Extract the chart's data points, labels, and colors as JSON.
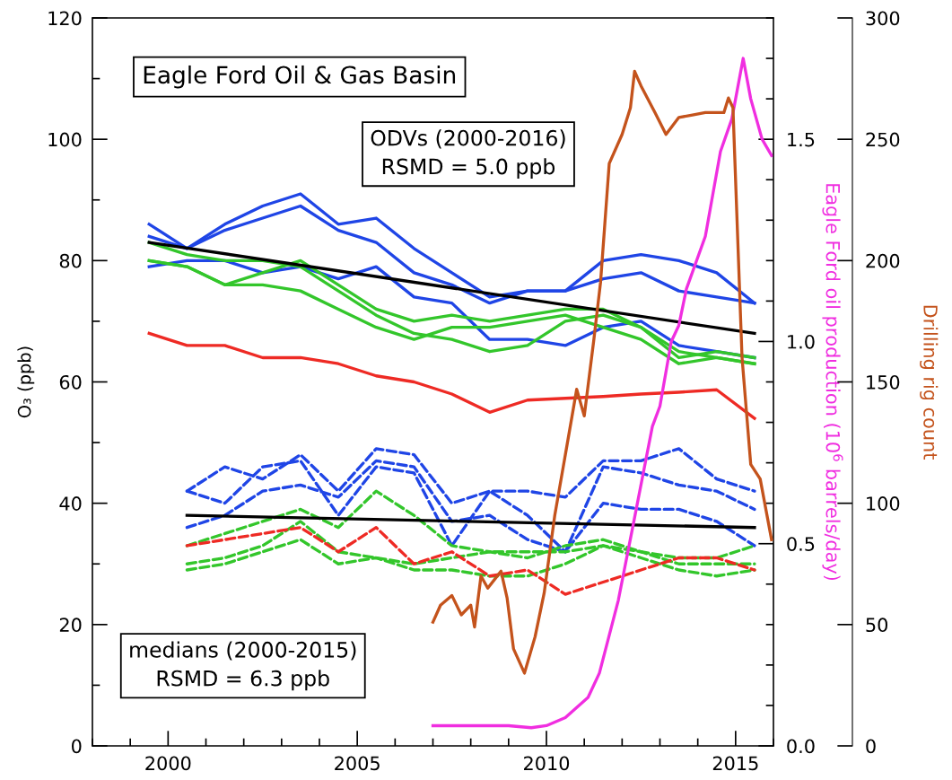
{
  "chart_data": {
    "type": "line",
    "ylabel": "O₃ (ppb)",
    "y2label": "Eagle Ford oil production (10$^{6}$ barrels/day)",
    "y3label": "Drilling rig count",
    "annotations": [
      "Eagle Ford Oil & Gas Basin",
      "ODVs (2000-2016)\nRSMD = 5.0 ppb",
      "medians (2000-2015)\nRSMD = 6.3 ppb"
    ],
    "xlim": [
      1998,
      2016
    ],
    "xticks": [
      {
        "value": 1998,
        "label": null
      },
      {
        "value": 1999,
        "label": null
      },
      2000,
      {
        "value": 2001,
        "label": null
      },
      {
        "value": 2002,
        "label": null
      },
      {
        "value": 2003,
        "label": null
      },
      {
        "value": 2004,
        "label": null
      },
      2005,
      {
        "value": 2006,
        "label": null
      },
      {
        "value": 2007,
        "label": null
      },
      {
        "value": 2008,
        "label": null
      },
      {
        "value": 2009,
        "label": null
      },
      2010,
      {
        "value": 2011,
        "label": null
      },
      {
        "value": 2012,
        "label": null
      },
      {
        "value": 2013,
        "label": null
      },
      {
        "value": 2014,
        "label": null
      },
      2015,
      {
        "value": 2016,
        "label": null
      }
    ],
    "ylim": [
      0,
      120
    ],
    "yticks": [
      0,
      {
        "value": 10,
        "label": null
      },
      20,
      {
        "value": 30,
        "label": null
      },
      40,
      {
        "value": 50,
        "label": null
      },
      60,
      {
        "value": 70,
        "label": null
      },
      80,
      {
        "value": 90,
        "label": null
      },
      100,
      {
        "value": 110,
        "label": null
      },
      120
    ],
    "y2lim": [
      0,
      1.8
    ],
    "y2ticks": [
      {
        "value": 0,
        "label": "0.0"
      },
      {
        "value": 0.1,
        "label": null
      },
      {
        "value": 0.2,
        "label": null
      },
      {
        "value": 0.3,
        "label": null
      },
      {
        "value": 0.4,
        "label": null
      },
      0.5,
      {
        "value": 0.6,
        "label": null
      },
      {
        "value": 0.7,
        "label": null
      },
      {
        "value": 0.8,
        "label": null
      },
      {
        "value": 0.9,
        "label": null
      },
      {
        "value": 1.0,
        "label": "1.0"
      },
      {
        "value": 1.1,
        "label": null
      },
      {
        "value": 1.2,
        "label": null
      },
      {
        "value": 1.3,
        "label": null
      },
      {
        "value": 1.4,
        "label": null
      },
      1.5,
      {
        "value": 1.6,
        "label": null
      },
      {
        "value": 1.7,
        "label": null
      },
      {
        "value": 1.8,
        "label": null
      }
    ],
    "y3lim": [
      0,
      300
    ],
    "y3ticks": [
      0,
      50,
      100,
      150,
      200,
      250,
      300
    ],
    "grid": false,
    "series": [
      {
        "color": "#1f45e6",
        "x": [
          1999.5,
          2000.5,
          2001.5,
          2002.5,
          2003.5,
          2004.5,
          2005.5,
          2006.5,
          2007.5,
          2008.5,
          2009.5,
          2010.5,
          2011.5,
          2012.5,
          2013.5,
          2014.5,
          2015.5
        ],
        "values": [
          86,
          82,
          86,
          89,
          91,
          86,
          87,
          82,
          78,
          74,
          75,
          75,
          80,
          81,
          80,
          78,
          73
        ]
      },
      {
        "color": "#1f45e6",
        "x": [
          1999.5,
          2000.5,
          2001.5,
          2002.5,
          2003.5,
          2004.5,
          2005.5,
          2006.5,
          2007.5,
          2008.5,
          2009.5,
          2010.5,
          2011.5,
          2012.5,
          2013.5,
          2014.5,
          2015.5
        ],
        "values": [
          84,
          82,
          85,
          87,
          89,
          85,
          83,
          78,
          76,
          73,
          75,
          75,
          77,
          78,
          75,
          74,
          73
        ]
      },
      {
        "color": "#1f45e6",
        "x": [
          1999.5,
          2000.5,
          2001.5,
          2002.5,
          2003.5,
          2004.5,
          2005.5,
          2006.5,
          2007.5,
          2008.5,
          2009.5,
          2010.5,
          2011.5,
          2012.5,
          2013.5,
          2014.5,
          2015.5
        ],
        "values": [
          79,
          80,
          80,
          78,
          79,
          77,
          79,
          74,
          73,
          67,
          67,
          66,
          69,
          70,
          66,
          65,
          64
        ]
      },
      {
        "color": "#33c62b",
        "x": [
          1999.5,
          2000.5,
          2001.5,
          2002.5,
          2003.5,
          2004.5,
          2005.5,
          2006.5,
          2007.5,
          2008.5,
          2009.5,
          2010.5,
          2011.5,
          2012.5,
          2013.5,
          2014.5,
          2015.5
        ],
        "values": [
          80,
          79,
          76,
          78,
          80,
          76,
          72,
          70,
          71,
          70,
          71,
          72,
          72,
          69,
          64,
          65,
          64
        ]
      },
      {
        "color": "#33c62b",
        "x": [
          1999.5,
          2000.5,
          2001.5,
          2002.5,
          2003.5,
          2004.5,
          2005.5,
          2006.5,
          2007.5,
          2008.5,
          2009.5,
          2010.5,
          2011.5,
          2012.5,
          2013.5,
          2014.5,
          2015.5
        ],
        "values": [
          83,
          81,
          80,
          80,
          79,
          75,
          71,
          68,
          67,
          65,
          66,
          70,
          71,
          69,
          65,
          64,
          63
        ]
      },
      {
        "color": "#33c62b",
        "x": [
          1999.5,
          2000.5,
          2001.5,
          2002.5,
          2003.5,
          2004.5,
          2005.5,
          2006.5,
          2007.5,
          2008.5,
          2009.5,
          2010.5,
          2011.5,
          2012.5,
          2013.5,
          2014.5,
          2015.5
        ],
        "values": [
          80,
          79,
          76,
          76,
          75,
          72,
          69,
          67,
          69,
          69,
          70,
          71,
          69,
          67,
          63,
          64,
          63
        ]
      },
      {
        "color": "#ee2a24",
        "x": [
          1999.5,
          2000.5,
          2001.5,
          2002.5,
          2003.5,
          2004.5,
          2005.5,
          2006.5,
          2007.5,
          2008.5,
          2009.5,
          2010.5,
          2011.5,
          2012.5,
          2013.5,
          2014.5,
          2015.5
        ],
        "values": [
          68,
          66,
          66,
          64,
          64,
          63,
          61,
          60,
          58,
          55,
          57,
          57.3,
          57.6,
          58,
          58.3,
          58.7,
          54
        ]
      },
      {
        "color": "#000000",
        "x": [
          1999.5,
          2015.5
        ],
        "values": [
          83,
          68
        ]
      },
      {
        "color": "#1f45e6",
        "line_style": "dashed",
        "x": [
          2000.5,
          2001.5,
          2002.5,
          2003.5,
          2004.5,
          2005.5,
          2006.5,
          2007.5,
          2008.5,
          2009.5,
          2010.5,
          2011.5,
          2012.5,
          2013.5,
          2014.5,
          2015.5
        ],
        "values": [
          42,
          46,
          44,
          48,
          42,
          49,
          48,
          40,
          42,
          42,
          41,
          47,
          47,
          49,
          44,
          42
        ]
      },
      {
        "color": "#1f45e6",
        "line_style": "dashed",
        "x": [
          2000.5,
          2001.5,
          2002.5,
          2003.5,
          2004.5,
          2005.5,
          2006.5,
          2007.5,
          2008.5,
          2009.5,
          2010.5,
          2011.5,
          2012.5,
          2013.5,
          2014.5,
          2015.5
        ],
        "values": [
          42,
          40,
          46,
          47,
          38,
          46,
          45,
          33,
          42,
          38,
          32,
          46,
          45,
          43,
          42,
          39
        ]
      },
      {
        "color": "#1f45e6",
        "line_style": "dashed",
        "x": [
          2000.5,
          2001.5,
          2002.5,
          2003.5,
          2004.5,
          2005.5,
          2006.5,
          2007.5,
          2008.5,
          2009.5,
          2010.5,
          2011.5,
          2012.5,
          2013.5,
          2014.5,
          2015.5
        ],
        "values": [
          36,
          38,
          42,
          43,
          41,
          47,
          46,
          37,
          38,
          34,
          32,
          40,
          39,
          39,
          37,
          33
        ]
      },
      {
        "color": "#33c62b",
        "line_style": "dashed",
        "x": [
          2000.5,
          2001.5,
          2002.5,
          2003.5,
          2004.5,
          2005.5,
          2006.5,
          2007.5,
          2008.5,
          2009.5,
          2010.5,
          2011.5,
          2012.5,
          2013.5,
          2014.5,
          2015.5
        ],
        "values": [
          33,
          35,
          37,
          39,
          36,
          42,
          38,
          33,
          32,
          31,
          33,
          34,
          32,
          31,
          31,
          33
        ]
      },
      {
        "color": "#33c62b",
        "line_style": "dashed",
        "x": [
          2000.5,
          2001.5,
          2002.5,
          2003.5,
          2004.5,
          2005.5,
          2006.5,
          2007.5,
          2008.5,
          2009.5,
          2010.5,
          2011.5,
          2012.5,
          2013.5,
          2014.5,
          2015.5
        ],
        "values": [
          30,
          31,
          33,
          37,
          32,
          31,
          30,
          31,
          32,
          32,
          32,
          33,
          32,
          30,
          30,
          30
        ]
      },
      {
        "color": "#33c62b",
        "line_style": "dashed",
        "x": [
          2000.5,
          2001.5,
          2002.5,
          2003.5,
          2004.5,
          2005.5,
          2006.5,
          2007.5,
          2008.5,
          2009.5,
          2010.5,
          2011.5,
          2012.5,
          2013.5,
          2014.5,
          2015.5
        ],
        "values": [
          29,
          30,
          32,
          34,
          30,
          31,
          29,
          29,
          28,
          28,
          30,
          33,
          31,
          29,
          28,
          29
        ]
      },
      {
        "color": "#ee2a24",
        "line_style": "dashed",
        "x": [
          2000.5,
          2001.5,
          2002.5,
          2003.5,
          2004.5,
          2005.5,
          2006.5,
          2007.5,
          2008.5,
          2009.5,
          2010.5,
          2011.5,
          2012.5,
          2013.5,
          2014.5,
          2015.5
        ],
        "values": [
          33,
          34,
          35,
          36,
          32,
          36,
          30,
          32,
          28,
          29,
          25,
          27,
          29,
          31,
          31,
          29
        ]
      },
      {
        "color": "#000000",
        "x": [
          2000.5,
          2015.5
        ],
        "values": [
          38,
          36
        ]
      },
      {
        "color": "#c4531c",
        "axis": "y3",
        "x": [
          2007.0,
          2007.2,
          2007.5,
          2007.75,
          2008.0,
          2008.1,
          2008.27,
          2008.45,
          2008.8,
          2008.96,
          2009.13,
          2009.42,
          2009.7,
          2009.94,
          2010.22,
          2010.5,
          2010.8,
          2011.0,
          2011.25,
          2011.43,
          2011.66,
          2012.0,
          2012.22,
          2012.33,
          2012.5,
          2012.87,
          2013.16,
          2013.5,
          2013.86,
          2014.2,
          2014.69,
          2014.81,
          2014.93,
          2015.17,
          2015.4,
          2015.65,
          2015.95
        ],
        "values": [
          51,
          58,
          62,
          54,
          58,
          49,
          70,
          65,
          72,
          61,
          40,
          30,
          45,
          63,
          95,
          120,
          147,
          136,
          167,
          191,
          240,
          252,
          263,
          278,
          272,
          261,
          252,
          259,
          260,
          261,
          261,
          267,
          263,
          160,
          116,
          110,
          85
        ]
      },
      {
        "color": "#f02ee0",
        "axis": "y2",
        "x": [
          2007.0,
          2007.5,
          2008.0,
          2008.5,
          2009.0,
          2009.6,
          2010.0,
          2010.5,
          2011.1,
          2011.4,
          2011.9,
          2012.3,
          2012.8,
          2013.0,
          2013.3,
          2013.5,
          2013.7,
          2014.2,
          2014.6,
          2014.9,
          2015.2,
          2015.4,
          2015.7,
          2015.95
        ],
        "values": [
          0.05,
          0.05,
          0.05,
          0.05,
          0.05,
          0.045,
          0.05,
          0.07,
          0.12,
          0.18,
          0.36,
          0.55,
          0.79,
          0.84,
          1.0,
          1.04,
          1.13,
          1.26,
          1.47,
          1.55,
          1.7,
          1.6,
          1.5,
          1.46
        ]
      }
    ]
  }
}
